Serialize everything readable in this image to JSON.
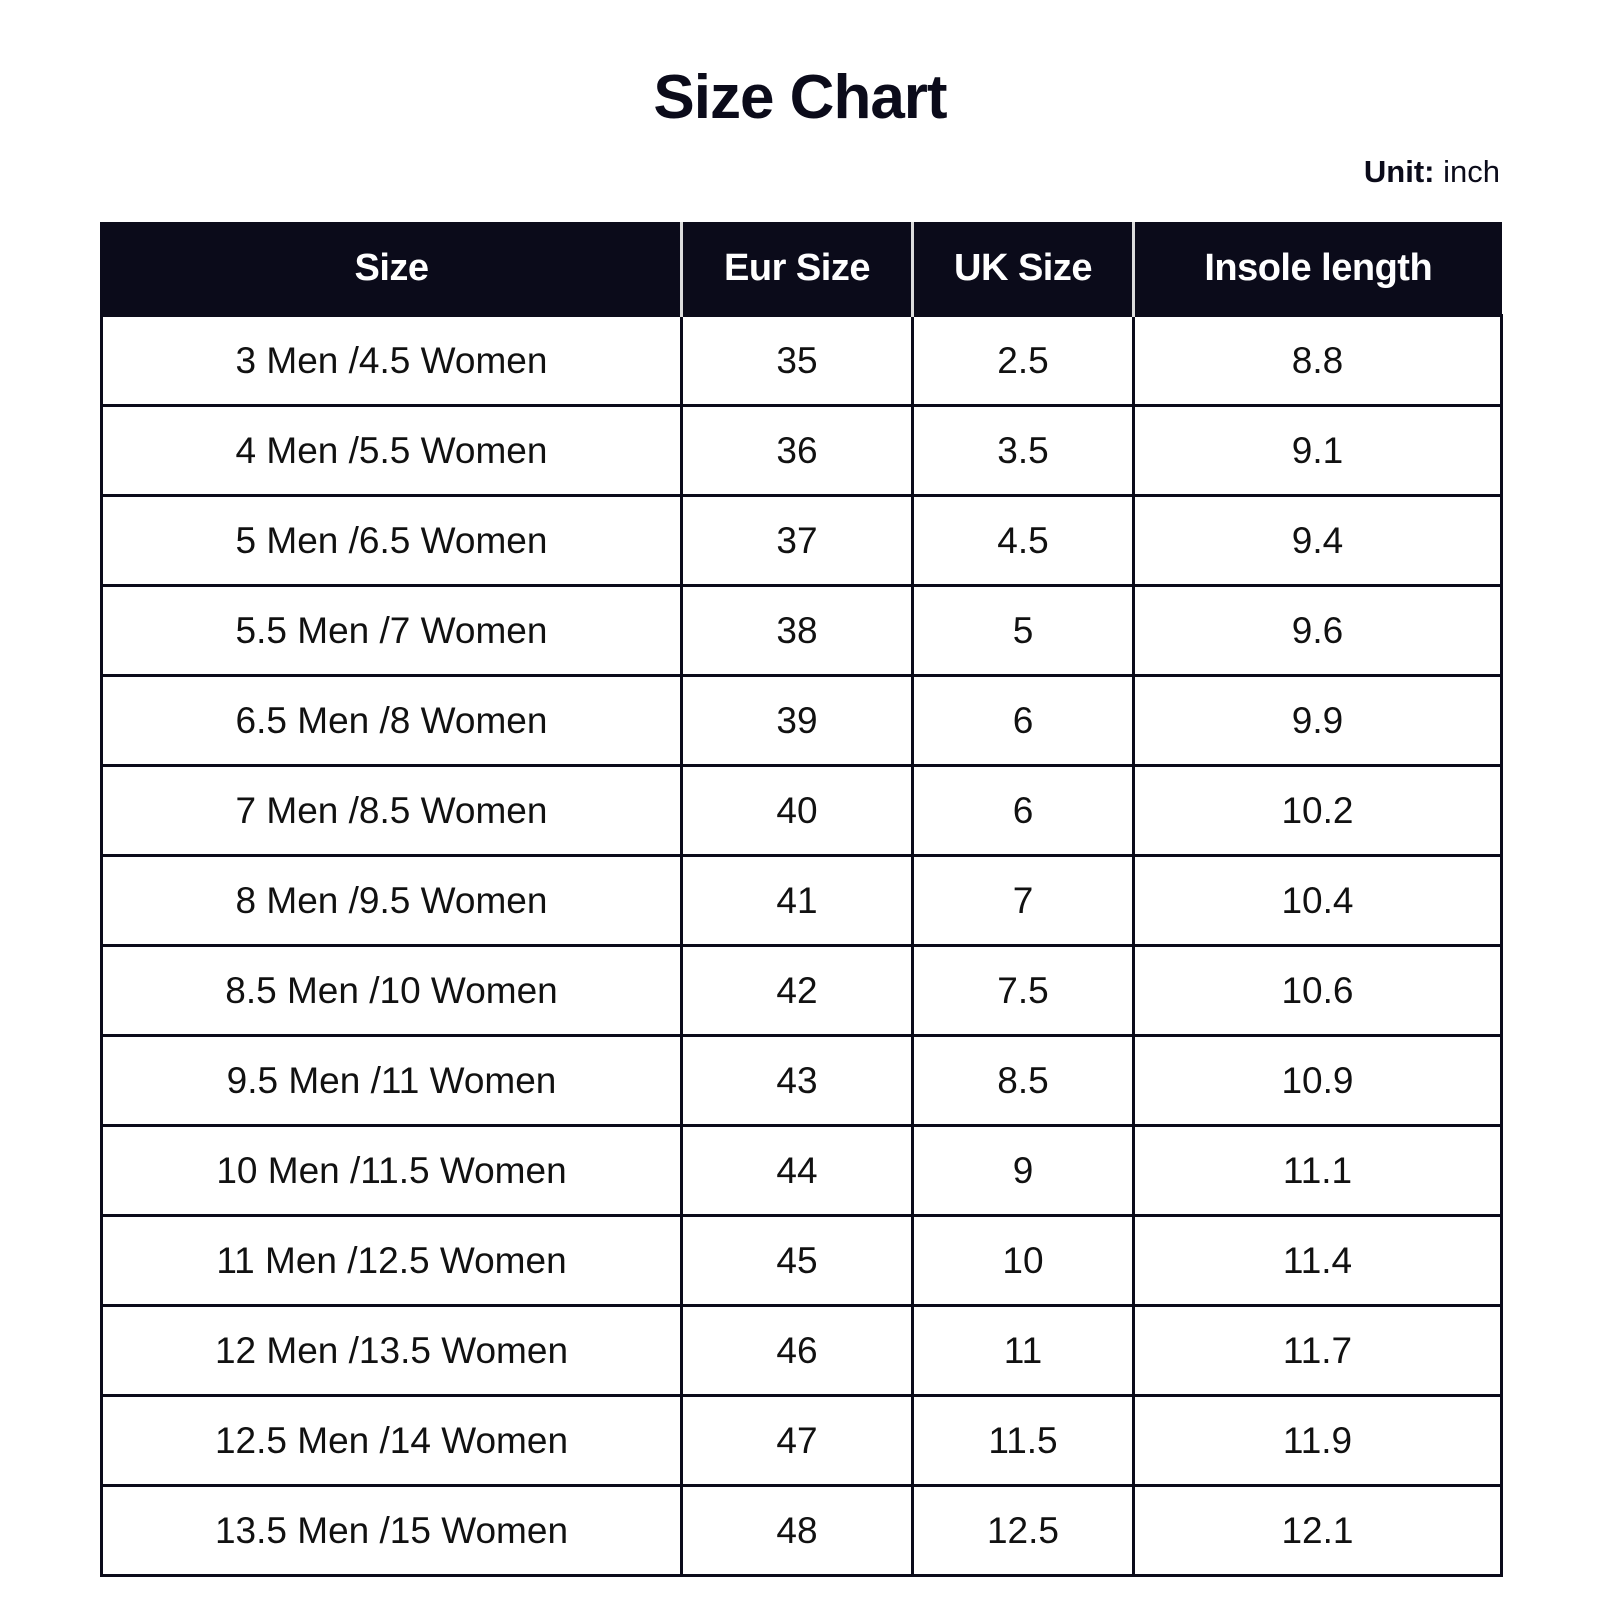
{
  "title": "Size Chart",
  "unit": {
    "label": "Unit:",
    "value": "inch"
  },
  "table": {
    "headers": [
      "Size",
      "Eur Size",
      "UK Size",
      "Insole length"
    ],
    "rows": [
      [
        "3 Men /4.5 Women",
        "35",
        "2.5",
        "8.8"
      ],
      [
        "4 Men /5.5 Women",
        "36",
        "3.5",
        "9.1"
      ],
      [
        "5 Men /6.5 Women",
        "37",
        "4.5",
        "9.4"
      ],
      [
        "5.5 Men /7 Women",
        "38",
        "5",
        "9.6"
      ],
      [
        "6.5 Men /8 Women",
        "39",
        "6",
        "9.9"
      ],
      [
        "7 Men /8.5 Women",
        "40",
        "6",
        "10.2"
      ],
      [
        "8 Men /9.5 Women",
        "41",
        "7",
        "10.4"
      ],
      [
        "8.5 Men /10 Women",
        "42",
        "7.5",
        "10.6"
      ],
      [
        "9.5 Men /11 Women",
        "43",
        "8.5",
        "10.9"
      ],
      [
        "10 Men /11.5 Women",
        "44",
        "9",
        "11.1"
      ],
      [
        "11 Men /12.5 Women",
        "45",
        "10",
        "11.4"
      ],
      [
        "12 Men /13.5 Women",
        "46",
        "11",
        "11.7"
      ],
      [
        "12.5 Men /14 Women",
        "47",
        "11.5",
        "11.9"
      ],
      [
        "13.5 Men /15 Women",
        "48",
        "12.5",
        "12.1"
      ]
    ]
  },
  "colors": {
    "header_bg": "#0b0b1a",
    "header_text": "#ffffff"
  }
}
